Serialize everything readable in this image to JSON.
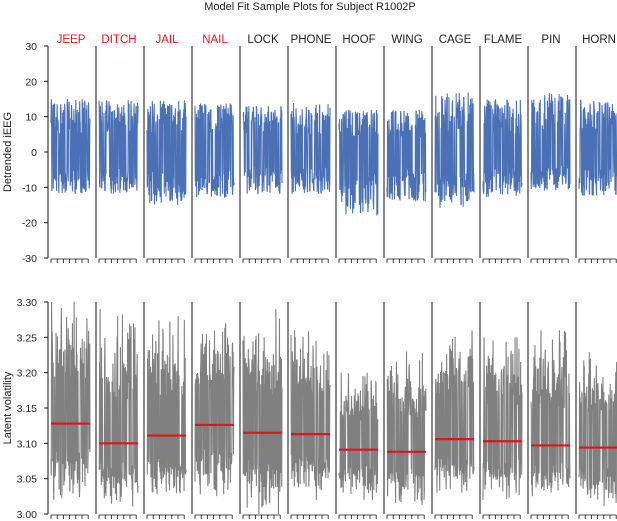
{
  "title": "Model Fit Sample Plots for Subject R1002P",
  "colors": {
    "highlight_label": "#e8161b",
    "normal_label": "#222222",
    "ieeg_trace": "#4a70b5",
    "volatility_trace": "#808080",
    "fit_line": "#e3131b",
    "axis": "#111111"
  },
  "chart_data": [
    {
      "type": "line",
      "panel": "top",
      "ylabel": "Detrended iEEG",
      "ylim": [
        -30,
        30
      ],
      "yticks": [
        -30,
        -20,
        -10,
        0,
        10,
        20,
        30
      ],
      "categories": [
        "JEEP",
        "DITCH",
        "JAIL",
        "NAIL",
        "LOCK",
        "PHONE",
        "HOOF",
        "WING",
        "CAGE",
        "FLAME",
        "PIN",
        "HORN"
      ],
      "highlighted": [
        true,
        true,
        true,
        true,
        false,
        false,
        false,
        false,
        false,
        false,
        false,
        false
      ],
      "series": [
        {
          "signal_range": [
            -12,
            15
          ]
        },
        {
          "signal_range": [
            -12,
            15
          ]
        },
        {
          "signal_range": [
            -15,
            15
          ]
        },
        {
          "signal_range": [
            -13,
            14
          ]
        },
        {
          "signal_range": [
            -12,
            13
          ]
        },
        {
          "signal_range": [
            -12,
            14
          ]
        },
        {
          "signal_range": [
            -18,
            12
          ]
        },
        {
          "signal_range": [
            -14,
            12
          ]
        },
        {
          "signal_range": [
            -16,
            17
          ]
        },
        {
          "signal_range": [
            -13,
            15
          ]
        },
        {
          "signal_range": [
            -11,
            17
          ]
        },
        {
          "signal_range": [
            -13,
            15
          ]
        }
      ],
      "grid": false
    },
    {
      "type": "line",
      "panel": "bottom",
      "ylabel": "Latent volatility",
      "ylim": [
        3.0,
        3.3
      ],
      "yticks": [
        "3.00",
        "3.05",
        "3.10",
        "3.15",
        "3.20",
        "3.25",
        "3.30"
      ],
      "categories": [
        "JEEP",
        "DITCH",
        "JAIL",
        "NAIL",
        "LOCK",
        "PHONE",
        "HOOF",
        "WING",
        "CAGE",
        "FLAME",
        "PIN",
        "HORN"
      ],
      "series": [
        {
          "fit_level": 3.128,
          "signal_range": [
            3.02,
            3.3
          ]
        },
        {
          "fit_level": 3.1,
          "signal_range": [
            3.01,
            3.29
          ]
        },
        {
          "fit_level": 3.111,
          "signal_range": [
            3.02,
            3.28
          ]
        },
        {
          "fit_level": 3.126,
          "signal_range": [
            3.02,
            3.27
          ]
        },
        {
          "fit_level": 3.115,
          "signal_range": [
            3.0,
            3.29
          ]
        },
        {
          "fit_level": 3.113,
          "signal_range": [
            3.02,
            3.26
          ]
        },
        {
          "fit_level": 3.091,
          "signal_range": [
            3.02,
            3.2
          ]
        },
        {
          "fit_level": 3.088,
          "signal_range": [
            3.01,
            3.23
          ]
        },
        {
          "fit_level": 3.106,
          "signal_range": [
            3.03,
            3.26
          ]
        },
        {
          "fit_level": 3.103,
          "signal_range": [
            3.02,
            3.25
          ]
        },
        {
          "fit_level": 3.097,
          "signal_range": [
            3.02,
            3.26
          ]
        },
        {
          "fit_level": 3.094,
          "signal_range": [
            3.01,
            3.23
          ]
        }
      ],
      "grid": false
    }
  ]
}
